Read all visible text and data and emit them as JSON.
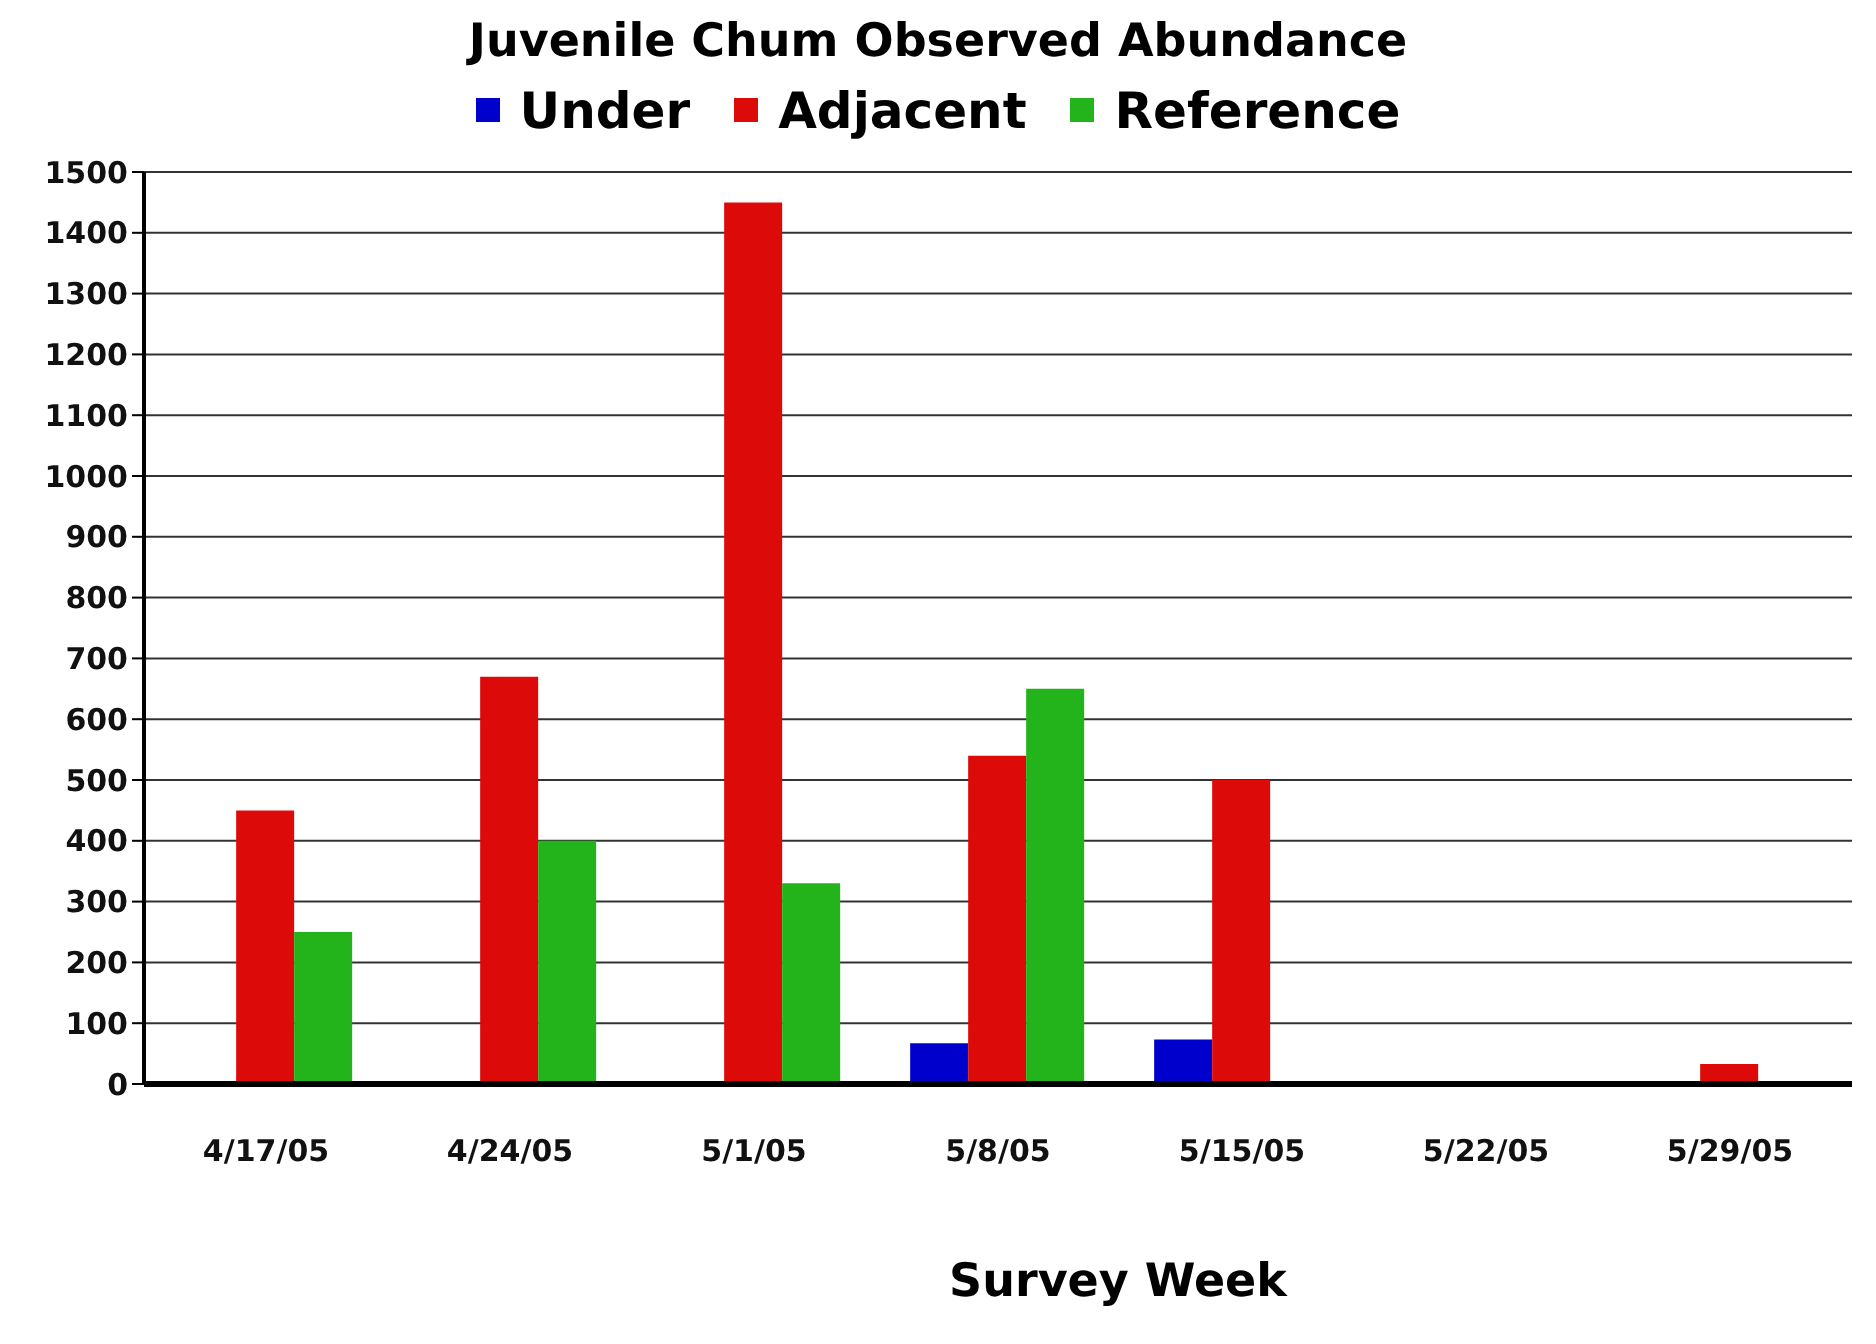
{
  "chart_data": {
    "type": "bar",
    "title": "Juvenile Chum Observed Abundance",
    "xlabel": "Survey Week",
    "categories": [
      "4/17/05",
      "4/24/05",
      "5/1/05",
      "5/8/05",
      "5/15/05",
      "5/22/05",
      "5/29/05"
    ],
    "series": [
      {
        "name": "Under",
        "color": "#0000cc",
        "values": [
          0,
          0,
          0,
          67,
          73,
          0,
          0
        ]
      },
      {
        "name": "Adjacent",
        "color": "#dd0a0a",
        "values": [
          450,
          670,
          1450,
          540,
          500,
          0,
          33
        ]
      },
      {
        "name": "Reference",
        "color": "#22b41a",
        "values": [
          250,
          400,
          330,
          650,
          0,
          0,
          0
        ]
      }
    ],
    "ylim": [
      0,
      1500
    ],
    "yticks": [
      0,
      100,
      200,
      300,
      400,
      500,
      600,
      700,
      800,
      900,
      1000,
      1100,
      1200,
      1300,
      1400,
      1500
    ],
    "grid": "y",
    "legend": "top"
  }
}
